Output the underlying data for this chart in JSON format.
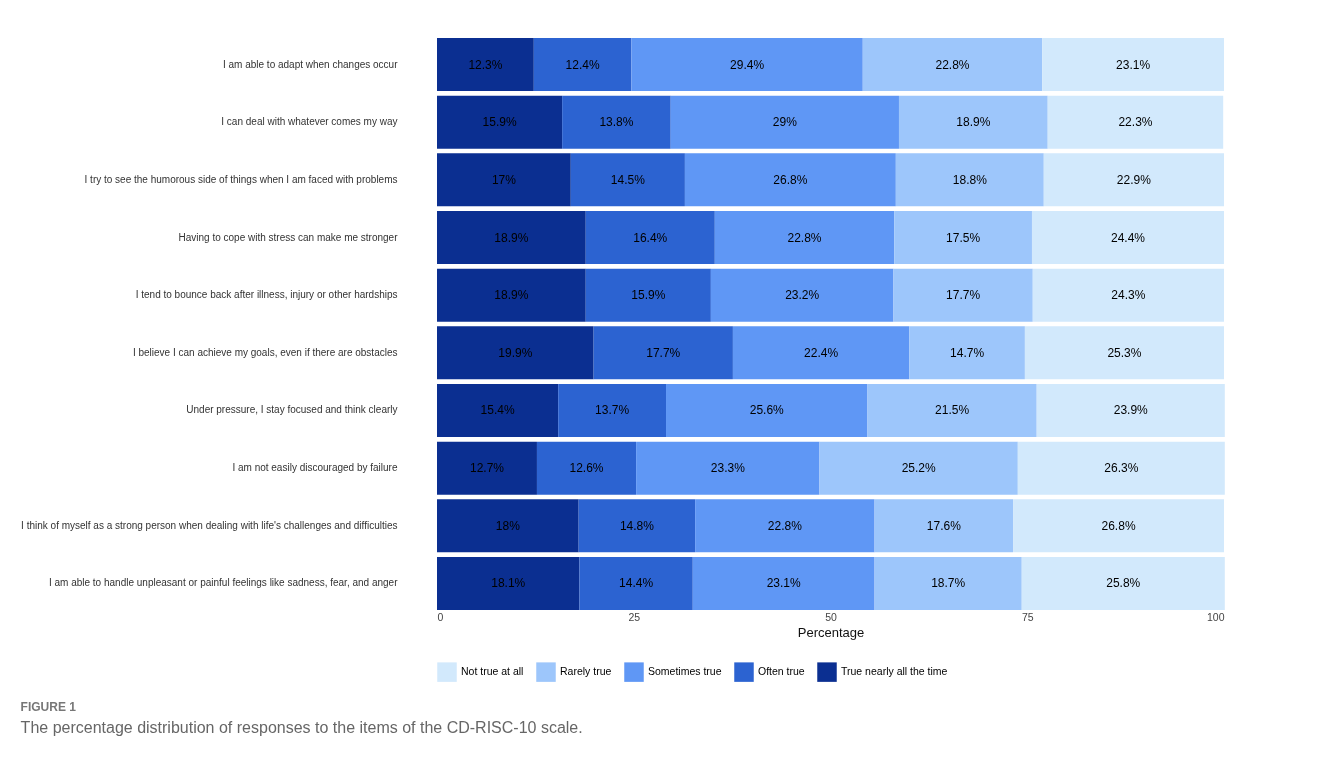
{
  "chart_data": {
    "type": "bar",
    "orientation": "horizontal",
    "stacked": true,
    "grid": false,
    "legend": "bottom",
    "xlabel": "Percentage",
    "xlim": [
      0,
      100
    ],
    "xticks": [
      0,
      25,
      50,
      75,
      100
    ],
    "categories": [
      "I am able to adapt when changes occur",
      "I can deal with whatever comes my way",
      "I try to see the humorous side of things when I am faced with problems",
      "Having to cope with stress can make me stronger",
      "I tend to bounce back after illness, injury or other hardships",
      "I believe I can achieve my goals, even if there are obstacles",
      "Under pressure, I stay focused and think clearly",
      "I am not easily discouraged by failure",
      "I think of myself as a strong person when dealing with life's challenges and difficulties",
      "I am able to handle unpleasant or painful feelings like sadness, fear, and anger"
    ],
    "series": [
      {
        "name": "True nearly all the time",
        "color": "#0b2f91",
        "values": [
          12.3,
          15.9,
          17,
          18.9,
          18.9,
          19.9,
          15.4,
          12.7,
          18,
          18.1
        ],
        "value_labels": [
          "12.3%",
          "15.9%",
          "17%",
          "18.9%",
          "18.9%",
          "19.9%",
          "15.4%",
          "12.7%",
          "18%",
          "18.1%"
        ]
      },
      {
        "name": "Often true",
        "color": "#2c63d1",
        "values": [
          12.4,
          13.8,
          14.5,
          16.4,
          15.9,
          17.7,
          13.7,
          12.6,
          14.8,
          14.4
        ],
        "value_labels": [
          "12.4%",
          "13.8%",
          "14.5%",
          "16.4%",
          "15.9%",
          "17.7%",
          "13.7%",
          "12.6%",
          "14.8%",
          "14.4%"
        ]
      },
      {
        "name": "Sometimes true",
        "color": "#5f97f5",
        "values": [
          29.4,
          29,
          26.8,
          22.8,
          23.2,
          22.4,
          25.6,
          23.3,
          22.8,
          23.1
        ],
        "value_labels": [
          "29.4%",
          "29%",
          "26.8%",
          "22.8%",
          "23.2%",
          "22.4%",
          "25.6%",
          "23.3%",
          "22.8%",
          "23.1%"
        ]
      },
      {
        "name": "Rarely true",
        "color": "#9dc6fb",
        "values": [
          22.8,
          18.9,
          18.8,
          17.5,
          17.7,
          14.7,
          21.5,
          25.2,
          17.6,
          18.7
        ],
        "value_labels": [
          "22.8%",
          "18.9%",
          "18.8%",
          "17.5%",
          "17.7%",
          "14.7%",
          "21.5%",
          "25.2%",
          "17.6%",
          "18.7%"
        ]
      },
      {
        "name": "Not true at all",
        "color": "#d2e9fc",
        "values": [
          23.1,
          22.3,
          22.9,
          24.4,
          24.3,
          25.3,
          23.9,
          26.3,
          26.8,
          25.8
        ],
        "value_labels": [
          "23.1%",
          "22.3%",
          "22.9%",
          "24.4%",
          "24.3%",
          "25.3%",
          "23.9%",
          "26.3%",
          "26.8%",
          "25.8%"
        ]
      }
    ],
    "annotations": [
      "FIGURE 1",
      "The percentage distribution of responses to the items of the CD-RISC-10 scale."
    ]
  }
}
